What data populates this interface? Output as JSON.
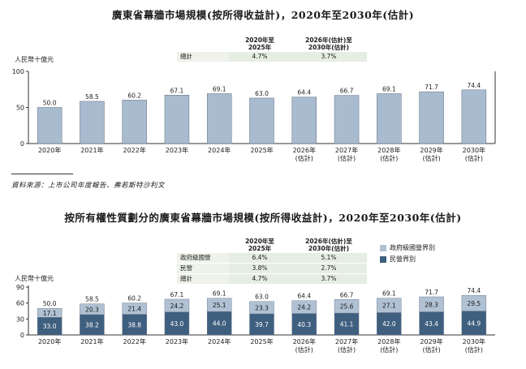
{
  "top": {
    "title": "廣東省幕牆市場規模(按所得收益計)，2020年至2030年(估計)",
    "unit_label": "人民幣十億元",
    "cagr_table": {
      "headers": [
        "2020年至\n2025年",
        "2026年(估計)至\n2030年(估計)"
      ],
      "rows": [
        {
          "label": "總計",
          "values": [
            "4.7%",
            "3.7%"
          ]
        }
      ]
    }
  },
  "source": "資料來源：上市公司年度報告、弗若斯特沙利文",
  "bottom": {
    "title": "按所有權性質劃分的廣東省幕牆市場規模(按所得收益計)，2020年至2030年(估計)",
    "unit_label": "人民幣十億元",
    "cagr_table": {
      "headers": [
        "2020年至\n2025年",
        "2026年(估計)至\n2030年(估計)"
      ],
      "rows": [
        {
          "label": "政府級國營",
          "values": [
            "6.4%",
            "5.1%"
          ]
        },
        {
          "label": "民營",
          "values": [
            "3.8%",
            "2.7%"
          ]
        },
        {
          "label": "總計",
          "values": [
            "4.7%",
            "3.7%"
          ]
        }
      ]
    },
    "legend": [
      {
        "label": "政府級國營界別",
        "color": "#b0c1d3"
      },
      {
        "label": "民營界別",
        "color": "#3f5f7f"
      }
    ]
  },
  "chart_data": [
    {
      "type": "bar",
      "categories": [
        "2020年",
        "2021年",
        "2022年",
        "2023年",
        "2024年",
        "2025年",
        "2026年\n(估計)",
        "2027年\n(估計)",
        "2028年\n(估計)",
        "2029年\n(估計)",
        "2030年\n(估計)"
      ],
      "values": [
        50.0,
        58.5,
        60.2,
        67.1,
        69.1,
        63.0,
        64.4,
        66.7,
        69.1,
        71.7,
        74.4
      ],
      "value_labels": [
        "50.0",
        "58.5",
        "60.2",
        "67.1",
        "69.1",
        "63.0",
        "64.4",
        "66.7",
        "69.1",
        "71.7",
        "74.4"
      ],
      "ylabel": "人民幣十億元",
      "ylim": [
        0,
        100
      ],
      "yticks": [
        0,
        50,
        100
      ],
      "color": "#a9bbcf",
      "grid": false
    },
    {
      "type": "bar",
      "stacked": true,
      "categories": [
        "2020年",
        "2021年",
        "2022年",
        "2023年",
        "2024年",
        "2025年",
        "2026年\n(估計)",
        "2027年\n(估計)",
        "2028年\n(估計)",
        "2029年\n(估計)",
        "2030年\n(估計)"
      ],
      "series": [
        {
          "name": "民營界別",
          "values": [
            33.0,
            38.2,
            38.8,
            43.0,
            44.0,
            39.7,
            40.3,
            41.1,
            42.0,
            43.4,
            44.9
          ],
          "color": "#3f5f7f"
        },
        {
          "name": "政府級國營界別",
          "values": [
            17.1,
            20.3,
            21.4,
            24.2,
            25.1,
            23.3,
            24.2,
            25.6,
            27.1,
            28.3,
            29.5
          ],
          "color": "#b0c1d3"
        }
      ],
      "totals": [
        "50.0",
        "58.5",
        "60.2",
        "67.1",
        "69.1",
        "63.0",
        "64.4",
        "66.7",
        "69.1",
        "71.7",
        "74.4"
      ],
      "ylabel": "人民幣十億元",
      "ylim": [
        0,
        90
      ],
      "yticks": [
        0,
        30,
        60,
        90
      ],
      "grid": false
    }
  ]
}
